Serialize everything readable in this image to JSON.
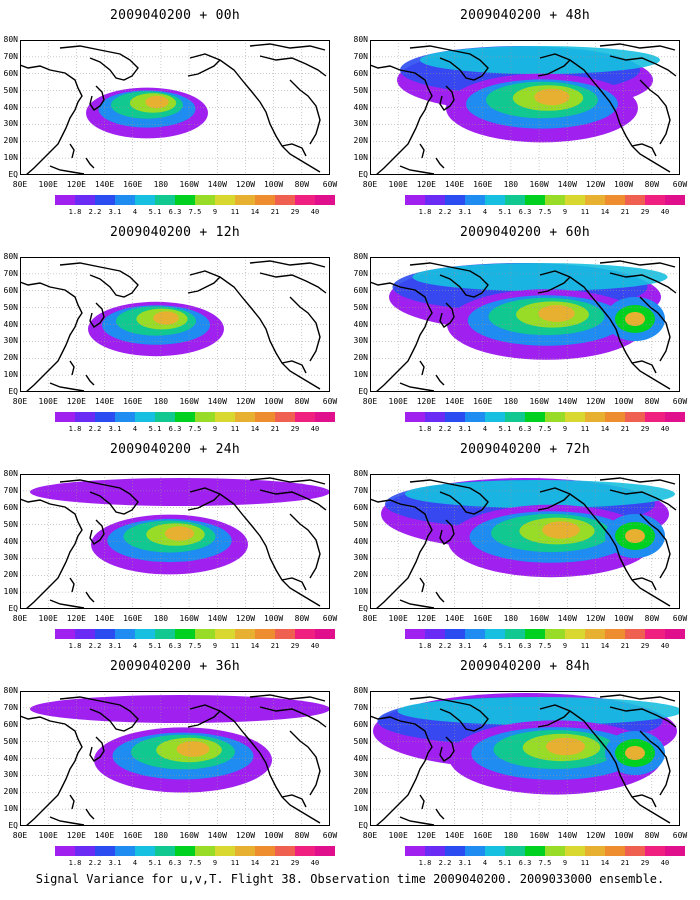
{
  "panels": [
    {
      "title": "2009040200 + 00h",
      "level": 0.3
    },
    {
      "title": "2009040200 + 48h",
      "level": 0.8
    },
    {
      "title": "2009040200 + 12h",
      "level": 0.4
    },
    {
      "title": "2009040200 + 60h",
      "level": 0.85
    },
    {
      "title": "2009040200 + 24h",
      "level": 0.55
    },
    {
      "title": "2009040200 + 72h",
      "level": 0.9
    },
    {
      "title": "2009040200 + 36h",
      "level": 0.7
    },
    {
      "title": "2009040200 + 84h",
      "level": 0.95
    }
  ],
  "lat_labels": [
    "80N",
    "70N",
    "60N",
    "50N",
    "40N",
    "30N",
    "20N",
    "10N",
    "EQ"
  ],
  "lon_labels": [
    "80E",
    "100E",
    "120E",
    "140E",
    "160E",
    "180",
    "160W",
    "140W",
    "120W",
    "100W",
    "80W",
    "60W"
  ],
  "colorbar": {
    "labels": [
      "1.8",
      "2.2",
      "3.1",
      "4",
      "5.1",
      "6.3",
      "7.5",
      "9",
      "11",
      "14",
      "21",
      "29",
      "40"
    ],
    "colors": [
      "#a020f0",
      "#6a2cf5",
      "#2b4cf0",
      "#1e8cf0",
      "#17c0e0",
      "#10c890",
      "#00d020",
      "#98dc28",
      "#d8d830",
      "#e8b030",
      "#ee8c30",
      "#f06050",
      "#f02080",
      "#e0108c"
    ]
  },
  "caption": "Signal Variance for u,v,T. Flight 38. Observation time 2009040200. 2009033000 ensemble."
}
